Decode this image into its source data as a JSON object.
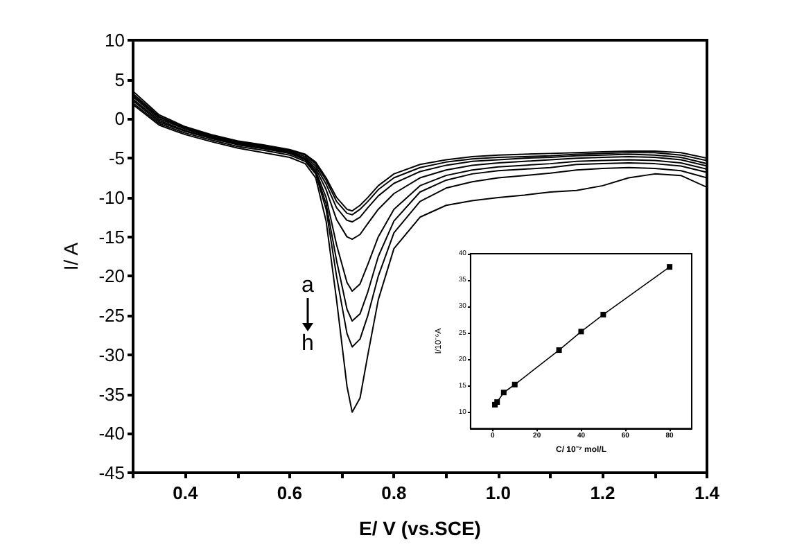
{
  "chart_data": [
    {
      "type": "line",
      "xlabel": "E/ V (vs.SCE)",
      "ylabel": "I/ A",
      "xlim": [
        0.3,
        1.4
      ],
      "ylim": [
        -45,
        10
      ],
      "xticks": [
        {
          "value": 0.3,
          "label": null
        },
        0.4,
        {
          "value": 0.5,
          "label": null
        },
        0.6,
        {
          "value": 0.7,
          "label": null
        },
        0.8,
        {
          "value": 0.9,
          "label": null
        },
        {
          "value": 1,
          "label": "1.0"
        },
        {
          "value": 1.1,
          "label": null
        },
        1.2,
        {
          "value": 1.3,
          "label": null
        },
        1.4
      ],
      "yticks": [
        -45,
        -40,
        -35,
        -30,
        -25,
        -20,
        -15,
        -10,
        -5,
        0,
        5,
        10
      ],
      "x": [
        0.3,
        0.35,
        0.4,
        0.45,
        0.5,
        0.55,
        0.6,
        0.63,
        0.65,
        0.67,
        0.69,
        0.71,
        0.72,
        0.735,
        0.75,
        0.77,
        0.8,
        0.85,
        0.9,
        0.95,
        1.0,
        1.05,
        1.1,
        1.15,
        1.2,
        1.25,
        1.3,
        1.35,
        1.4
      ],
      "series": [
        {
          "color": "#000000",
          "values": [
            3.5,
            0.5,
            -1.0,
            -2.0,
            -2.8,
            -3.3,
            -3.9,
            -4.5,
            -5.5,
            -7.5,
            -10,
            -11.5,
            -11.7,
            -11,
            -10,
            -8.5,
            -7,
            -5.8,
            -5.2,
            -4.8,
            -4.6,
            -4.5,
            -4.4,
            -4.3,
            -4.2,
            -4.1,
            -4.1,
            -4.3,
            -5.0
          ]
        },
        {
          "color": "#000000",
          "values": [
            3.2,
            0.3,
            -1.1,
            -2.1,
            -2.9,
            -3.4,
            -4.0,
            -4.6,
            -5.7,
            -7.8,
            -10.5,
            -12,
            -12.2,
            -11.5,
            -10.5,
            -9,
            -7.5,
            -6.2,
            -5.5,
            -5.1,
            -4.9,
            -4.8,
            -4.7,
            -4.5,
            -4.4,
            -4.3,
            -4.3,
            -4.6,
            -5.3
          ]
        },
        {
          "color": "#000000",
          "values": [
            3.0,
            0.2,
            -1.2,
            -2.2,
            -3.0,
            -3.5,
            -4.1,
            -4.8,
            -6,
            -8.3,
            -11.3,
            -12.9,
            -13.1,
            -12.5,
            -11.3,
            -9.8,
            -8.2,
            -6.7,
            -5.9,
            -5.4,
            -5.2,
            -5.0,
            -4.9,
            -4.7,
            -4.6,
            -4.5,
            -4.6,
            -4.9,
            -5.7
          ]
        },
        {
          "color": "#000000",
          "values": [
            2.8,
            0,
            -1.3,
            -2.3,
            -3.1,
            -3.6,
            -4.2,
            -5,
            -6.3,
            -9,
            -12.8,
            -15,
            -15.3,
            -14.7,
            -13.3,
            -11.5,
            -9.5,
            -7.5,
            -6.5,
            -5.9,
            -5.6,
            -5.4,
            -5.2,
            -5.0,
            -4.9,
            -4.8,
            -4.9,
            -5.2,
            -6.0
          ]
        },
        {
          "color": "#000000",
          "values": [
            2.5,
            -0.2,
            -1.5,
            -2.4,
            -3.2,
            -3.7,
            -4.3,
            -5.1,
            -6.6,
            -10,
            -16,
            -20.8,
            -21.9,
            -21,
            -18.5,
            -15,
            -11.5,
            -8.5,
            -7.2,
            -6.5,
            -6.1,
            -5.9,
            -5.7,
            -5.4,
            -5.3,
            -5.2,
            -5.3,
            -5.6,
            -6.4
          ]
        },
        {
          "color": "#000000",
          "values": [
            2.3,
            -0.4,
            -1.6,
            -2.5,
            -3.3,
            -3.8,
            -4.4,
            -5.2,
            -6.8,
            -10.8,
            -18,
            -24.2,
            -25.7,
            -24.8,
            -22,
            -17.5,
            -13,
            -9.3,
            -7.8,
            -7.0,
            -6.6,
            -6.4,
            -6.2,
            -5.8,
            -5.7,
            -5.6,
            -5.7,
            -6.0,
            -6.8
          ]
        },
        {
          "color": "#000000",
          "values": [
            2.0,
            -0.6,
            -1.8,
            -2.7,
            -3.5,
            -4.0,
            -4.6,
            -5.4,
            -7.0,
            -11.5,
            -20,
            -27.3,
            -29,
            -28,
            -25,
            -20,
            -14.5,
            -10.5,
            -8.8,
            -8.0,
            -7.5,
            -7.2,
            -6.9,
            -6.5,
            -6.3,
            -6.2,
            -6.3,
            -6.6,
            -7.5
          ]
        },
        {
          "color": "#000000",
          "values": [
            1.8,
            -0.8,
            -2.0,
            -2.9,
            -3.7,
            -4.3,
            -4.9,
            -5.7,
            -7.5,
            -13,
            -23,
            -34,
            -37.3,
            -35.5,
            -30,
            -23,
            -16.5,
            -12.5,
            -11,
            -10.4,
            -10,
            -9.7,
            -9.3,
            -9.1,
            -8.5,
            -7.5,
            -7.0,
            -7.2,
            -8.7
          ]
        }
      ],
      "annotations": [
        "a",
        "h"
      ],
      "grid": false,
      "marker": "none",
      "line_style": "solid"
    },
    {
      "type": "line",
      "xlabel": "C/ 10⁻⁷ mol/L",
      "ylabel": "I/10⁻⁶A",
      "xlim": [
        -10,
        90
      ],
      "ylim": [
        7,
        40
      ],
      "xticks": [
        0,
        20,
        40,
        60,
        80
      ],
      "yticks": [
        10,
        15,
        20,
        25,
        30,
        35,
        40
      ],
      "x": [
        1,
        2,
        5,
        10,
        30,
        40,
        50,
        80
      ],
      "series": [
        {
          "color": "#000000",
          "values": [
            11.5,
            12,
            13.8,
            15.3,
            21.8,
            25.3,
            28.5,
            37.5
          ]
        }
      ],
      "grid": false,
      "marker": "square",
      "line_style": "solid"
    }
  ]
}
